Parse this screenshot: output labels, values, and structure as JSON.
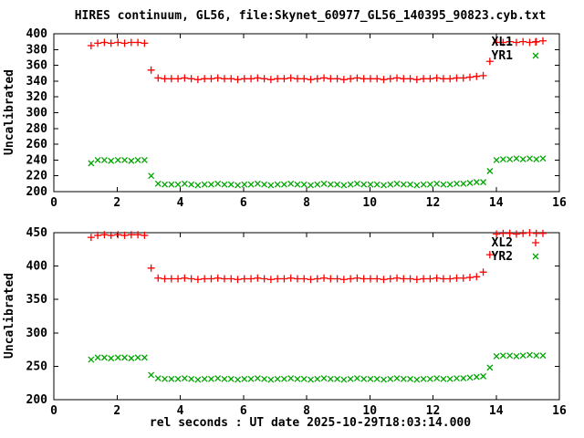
{
  "title": "HIRES continuum, GL56, file:Skynet_60977_GL56_140395_90823.cyb.txt",
  "xlabel": "rel seconds : UT date 2025-10-29T18:03:14.000",
  "colors": {
    "red": "#ff0000",
    "green": "#00a400",
    "frame": "#000000",
    "background": "#ffffff"
  },
  "chart_data": [
    {
      "type": "scatter",
      "panel": "top",
      "ylabel": "Uncalibrated",
      "xlim": [
        0,
        16
      ],
      "ylim": [
        200,
        400
      ],
      "xticks": [
        0,
        2,
        4,
        6,
        8,
        10,
        12,
        14,
        16
      ],
      "yticks": [
        200,
        220,
        240,
        260,
        280,
        300,
        320,
        340,
        360,
        380,
        400
      ],
      "grid": false,
      "legend_position": "top-right",
      "x": [
        1.18,
        1.39,
        1.6,
        1.81,
        2.03,
        2.24,
        2.45,
        2.66,
        2.87,
        3.08,
        3.3,
        3.51,
        3.72,
        3.93,
        4.14,
        4.35,
        4.56,
        4.77,
        4.98,
        5.19,
        5.4,
        5.61,
        5.82,
        6.03,
        6.24,
        6.45,
        6.66,
        6.87,
        7.08,
        7.29,
        7.5,
        7.71,
        7.92,
        8.13,
        8.34,
        8.55,
        8.76,
        8.97,
        9.18,
        9.39,
        9.6,
        9.81,
        10.02,
        10.23,
        10.44,
        10.65,
        10.86,
        11.07,
        11.28,
        11.49,
        11.7,
        11.91,
        12.12,
        12.33,
        12.54,
        12.75,
        12.96,
        13.17,
        13.38,
        13.59,
        13.8,
        14.01,
        14.22,
        14.43,
        14.64,
        14.85,
        15.06,
        15.27,
        15.48
      ],
      "series": [
        {
          "name": "XL1",
          "marker": "plus",
          "color": "#ff0000",
          "y": [
            385,
            388,
            389,
            388,
            389,
            388,
            389,
            389,
            388,
            354,
            344,
            343,
            343,
            343,
            344,
            343,
            342,
            343,
            343,
            344,
            343,
            343,
            342,
            343,
            343,
            344,
            343,
            342,
            343,
            343,
            344,
            343,
            343,
            342,
            343,
            344,
            343,
            343,
            342,
            343,
            344,
            343,
            343,
            343,
            342,
            343,
            344,
            343,
            343,
            342,
            343,
            343,
            344,
            343,
            343,
            344,
            344,
            345,
            346,
            347,
            365,
            389,
            389,
            390,
            389,
            390,
            389,
            390,
            391
          ]
        },
        {
          "name": "YR1",
          "marker": "cross",
          "color": "#00a400",
          "y": [
            236,
            240,
            240,
            239,
            240,
            240,
            239,
            240,
            240,
            220,
            210,
            209,
            209,
            209,
            210,
            209,
            208,
            209,
            209,
            210,
            209,
            209,
            208,
            209,
            209,
            210,
            209,
            208,
            209,
            209,
            210,
            209,
            209,
            208,
            209,
            210,
            209,
            209,
            208,
            209,
            210,
            209,
            209,
            209,
            208,
            209,
            210,
            209,
            209,
            208,
            209,
            209,
            210,
            209,
            209,
            210,
            210,
            211,
            212,
            212,
            226,
            240,
            241,
            241,
            242,
            241,
            242,
            241,
            242
          ]
        }
      ]
    },
    {
      "type": "scatter",
      "panel": "bottom",
      "ylabel": "Uncalibrated",
      "xlim": [
        0,
        16
      ],
      "ylim": [
        200,
        450
      ],
      "xticks": [
        0,
        2,
        4,
        6,
        8,
        10,
        12,
        14,
        16
      ],
      "yticks": [
        200,
        250,
        300,
        350,
        400,
        450
      ],
      "grid": false,
      "legend_position": "top-right",
      "x": [
        1.18,
        1.39,
        1.6,
        1.81,
        2.03,
        2.24,
        2.45,
        2.66,
        2.87,
        3.08,
        3.3,
        3.51,
        3.72,
        3.93,
        4.14,
        4.35,
        4.56,
        4.77,
        4.98,
        5.19,
        5.4,
        5.61,
        5.82,
        6.03,
        6.24,
        6.45,
        6.66,
        6.87,
        7.08,
        7.29,
        7.5,
        7.71,
        7.92,
        8.13,
        8.34,
        8.55,
        8.76,
        8.97,
        9.18,
        9.39,
        9.6,
        9.81,
        10.02,
        10.23,
        10.44,
        10.65,
        10.86,
        11.07,
        11.28,
        11.49,
        11.7,
        11.91,
        12.12,
        12.33,
        12.54,
        12.75,
        12.96,
        13.17,
        13.38,
        13.59,
        13.8,
        14.01,
        14.22,
        14.43,
        14.64,
        14.85,
        15.06,
        15.27,
        15.48
      ],
      "series": [
        {
          "name": "XL2",
          "marker": "plus",
          "color": "#ff0000",
          "y": [
            443,
            446,
            447,
            446,
            447,
            446,
            447,
            447,
            446,
            397,
            382,
            381,
            381,
            381,
            382,
            381,
            380,
            381,
            381,
            382,
            381,
            381,
            380,
            381,
            381,
            382,
            381,
            380,
            381,
            381,
            382,
            381,
            381,
            380,
            381,
            382,
            381,
            381,
            380,
            381,
            382,
            381,
            381,
            381,
            380,
            381,
            382,
            381,
            381,
            380,
            381,
            381,
            382,
            381,
            381,
            382,
            382,
            383,
            384,
            391,
            417,
            448,
            449,
            449,
            448,
            449,
            450,
            449,
            449
          ]
        },
        {
          "name": "YR2",
          "marker": "cross",
          "color": "#00a400",
          "y": [
            260,
            263,
            263,
            262,
            263,
            263,
            262,
            263,
            263,
            237,
            232,
            231,
            231,
            231,
            232,
            231,
            230,
            231,
            231,
            232,
            231,
            231,
            230,
            231,
            231,
            232,
            231,
            230,
            231,
            231,
            232,
            231,
            231,
            230,
            231,
            232,
            231,
            231,
            230,
            231,
            232,
            231,
            231,
            231,
            230,
            231,
            232,
            231,
            231,
            230,
            231,
            231,
            232,
            231,
            231,
            232,
            232,
            233,
            234,
            235,
            248,
            265,
            266,
            266,
            265,
            266,
            267,
            266,
            266
          ]
        }
      ]
    }
  ]
}
